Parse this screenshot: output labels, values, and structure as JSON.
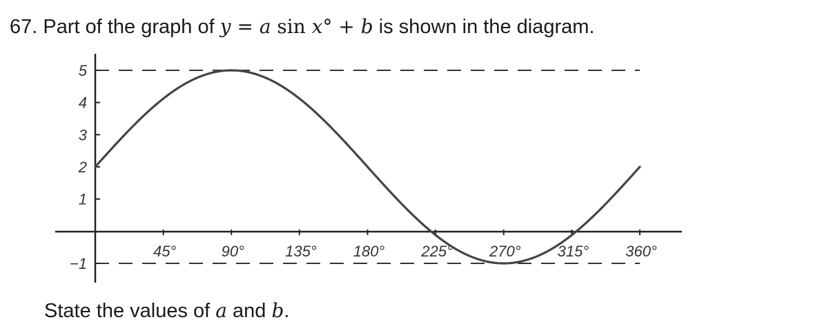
{
  "question": {
    "number": "67.",
    "pre": " Part of the graph of ",
    "var_y": "y",
    "equals": " = ",
    "var_a": "a",
    "sin": " sin ",
    "var_x": "x",
    "degree": "°",
    "plus": " + ",
    "var_b": "b",
    "post": " is shown in the diagram."
  },
  "prompt": {
    "pre": "State the values of ",
    "var_a": "a",
    "mid": " and ",
    "var_b": "b",
    "end": "."
  },
  "chart_data": {
    "type": "line",
    "title": "",
    "xlabel": "",
    "ylabel": "",
    "xlim": [
      0,
      360
    ],
    "ylim": [
      -1,
      5
    ],
    "x_ticks": [
      45,
      90,
      135,
      180,
      225,
      270,
      315,
      360
    ],
    "x_tick_labels": [
      "45°",
      "90°",
      "135°",
      "180°",
      "225°",
      "270°",
      "315°",
      "360°"
    ],
    "y_ticks": [
      5,
      4,
      3,
      2,
      1,
      -1
    ],
    "y_tick_labels": [
      "5",
      "4",
      "3",
      "2",
      "1",
      "−1"
    ],
    "reference_lines": [
      5,
      -1
    ],
    "series": [
      {
        "amplitude": 3,
        "offset": 2,
        "x_start": 0,
        "x_end": 360,
        "color": "#444444"
      }
    ],
    "grid": false,
    "legend": "none"
  }
}
